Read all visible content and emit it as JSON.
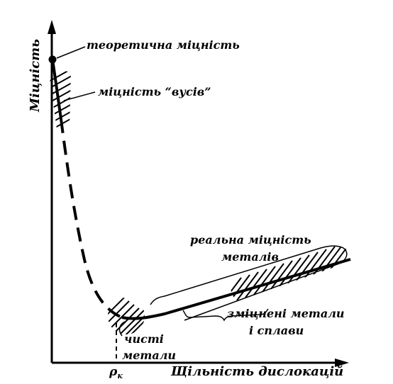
{
  "diagram": {
    "y_axis_label": "Міцність",
    "x_axis_label": "Щільність дислокацій",
    "x_tick_label": "ρ",
    "x_tick_subscript": "к",
    "labels": {
      "theoretical_strength": "теоретична міцність",
      "whisker_strength": "міцність “вусів”",
      "real_strength_line1": "реальна міцність",
      "real_strength_line2": "металів",
      "hardened_line1": "зміцнені метали",
      "hardened_line2": "і сплави",
      "pure_line1": "чисті",
      "pure_line2": "метали"
    },
    "line_color": "#000000"
  }
}
